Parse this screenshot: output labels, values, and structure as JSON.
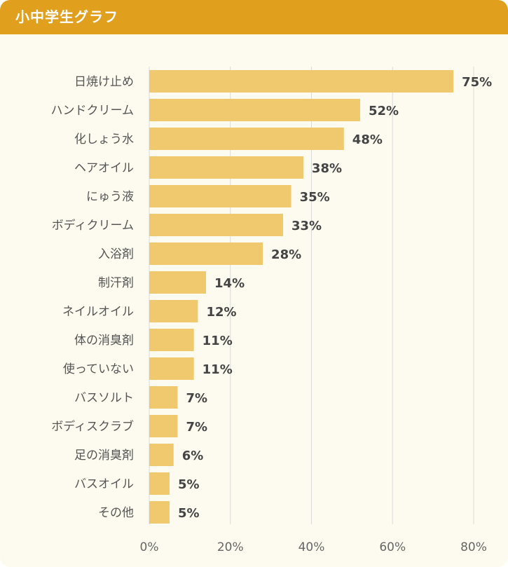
{
  "header": {
    "title": "小中学生グラフ"
  },
  "colors": {
    "header": "#e09f1c",
    "bar": "#f0c96f",
    "grid": "#d9d9d9",
    "background": "#fdfbef"
  },
  "chart_data": {
    "type": "bar",
    "orientation": "horizontal",
    "title": "小中学生グラフ",
    "categories": [
      "日焼け止め",
      "ハンドクリーム",
      "化しょう水",
      "ヘアオイル",
      "にゅう液",
      "ボディクリーム",
      "入浴剤",
      "制汗剤",
      "ネイルオイル",
      "体の消臭剤",
      "使っていない",
      "バスソルト",
      "ボディスクラブ",
      "足の消臭剤",
      "バスオイル",
      "その他"
    ],
    "values": [
      75,
      52,
      48,
      38,
      35,
      33,
      28,
      14,
      12,
      11,
      11,
      7,
      7,
      6,
      5,
      5
    ],
    "value_labels": [
      "75%",
      "52%",
      "48%",
      "38%",
      "35%",
      "33%",
      "28%",
      "14%",
      "12%",
      "11%",
      "11%",
      "7%",
      "7%",
      "6%",
      "5%",
      "5%"
    ],
    "xlim": [
      0,
      80
    ],
    "xticks": [
      0,
      20,
      40,
      60,
      80
    ],
    "xtick_labels": [
      "0%",
      "20%",
      "40%",
      "60%",
      "80%"
    ],
    "grid": true,
    "legend": "none"
  }
}
